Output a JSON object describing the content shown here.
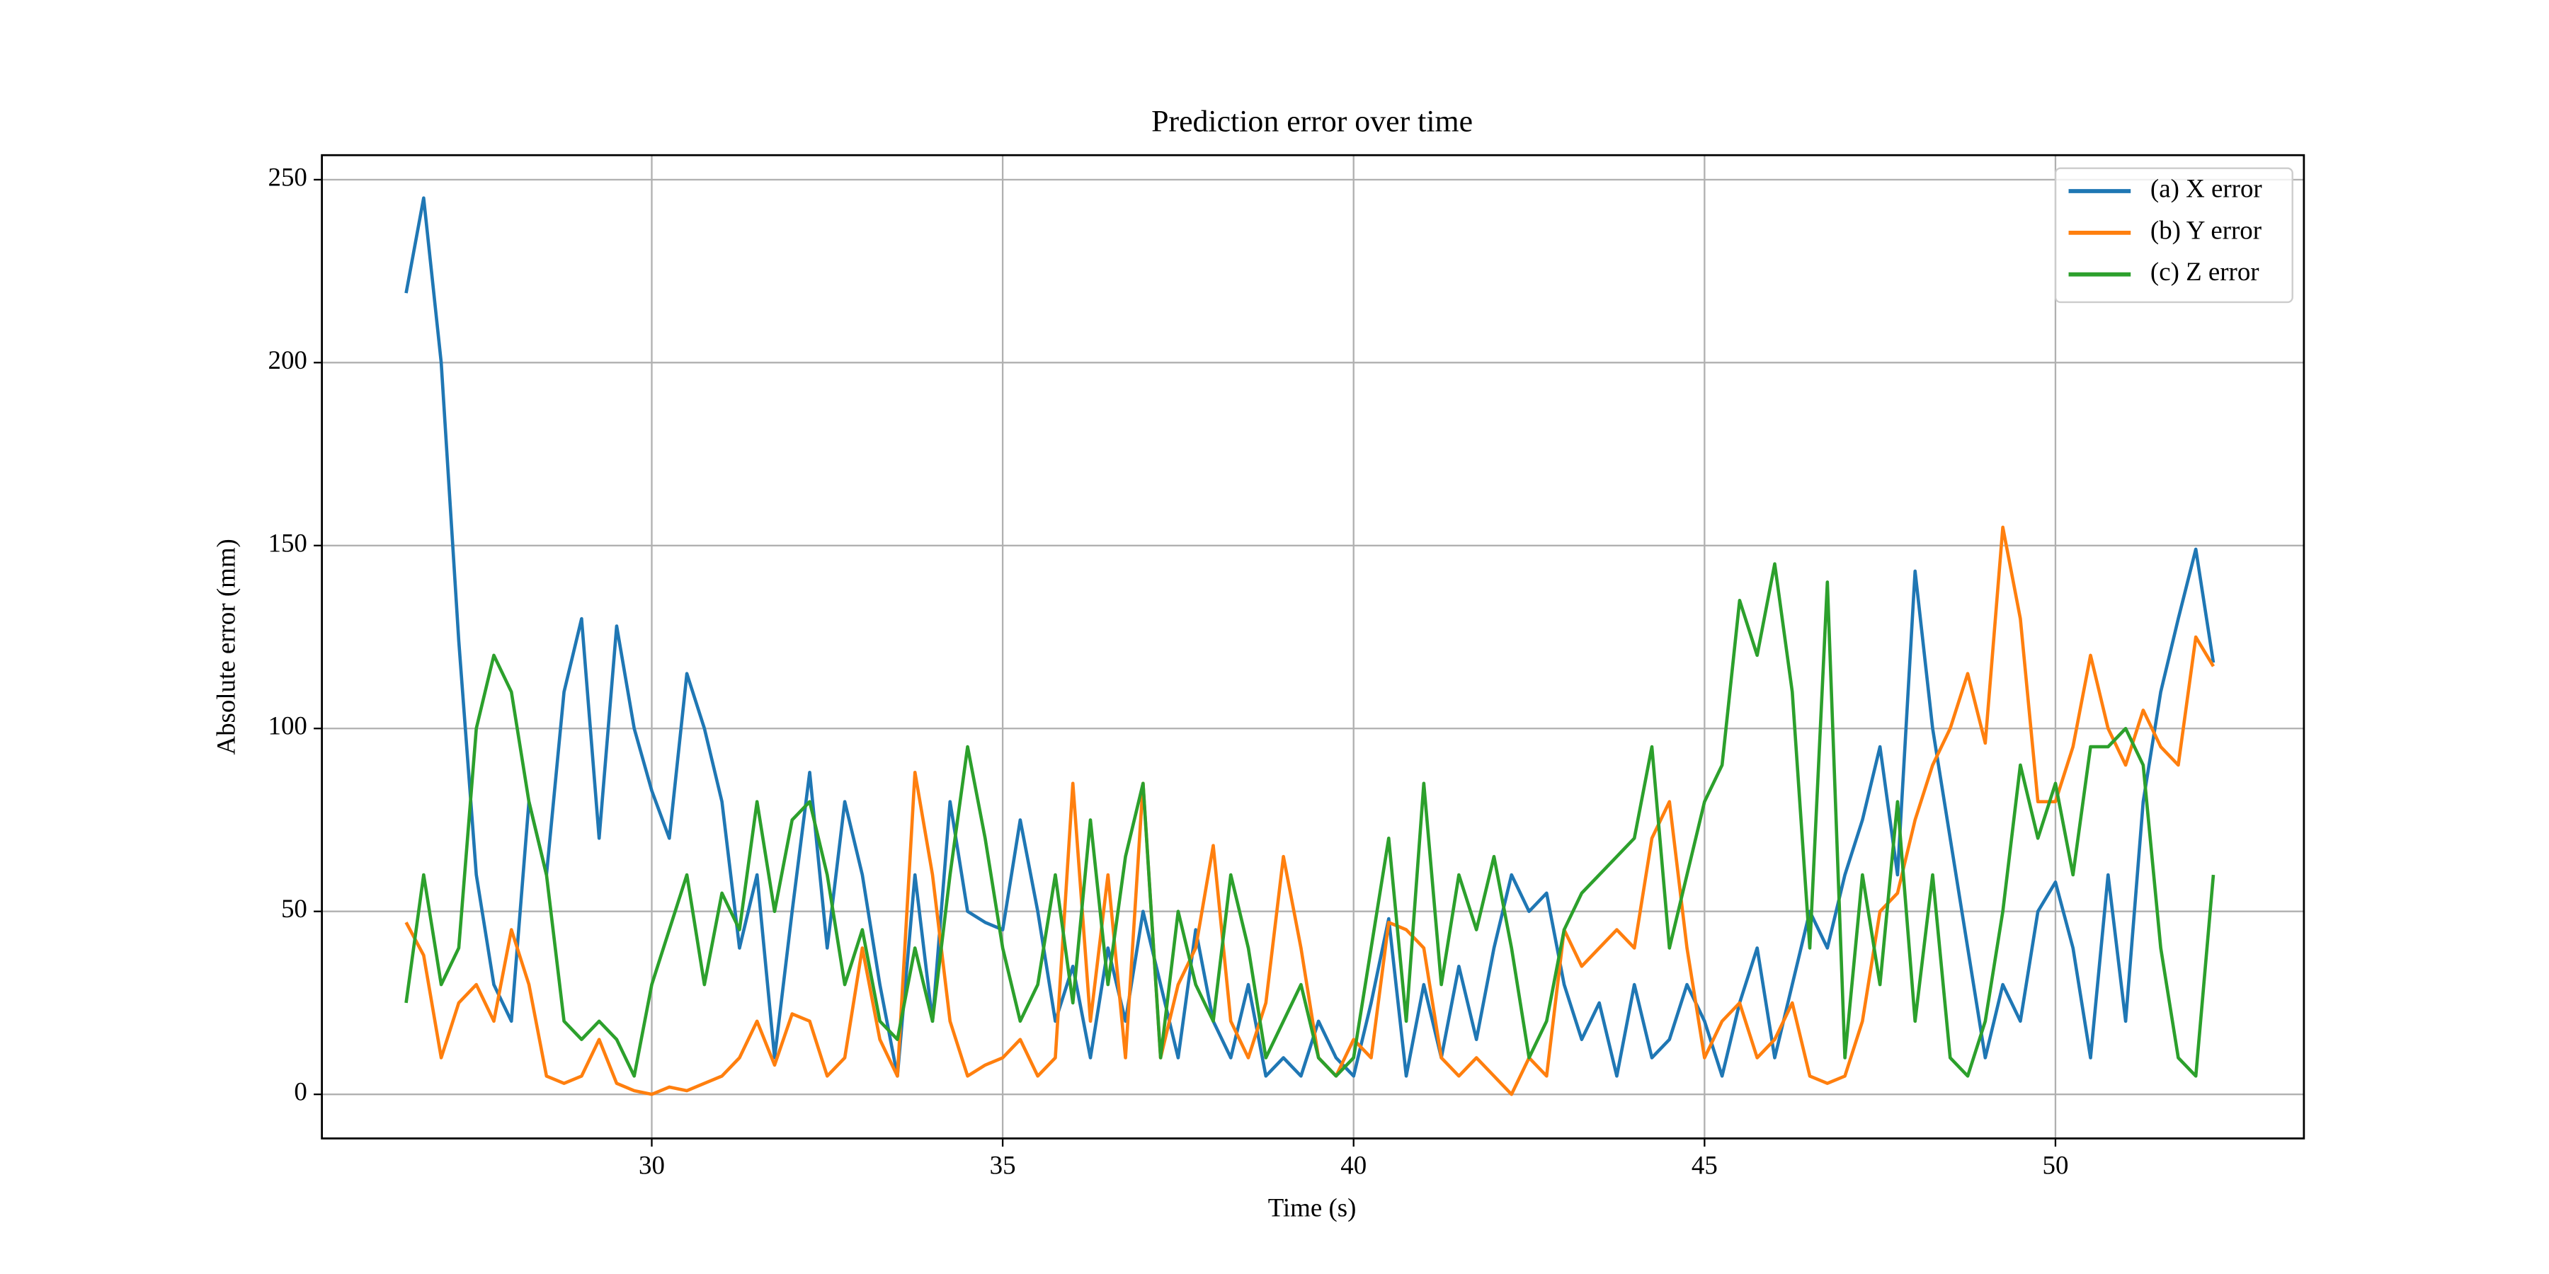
{
  "chart_data": {
    "type": "line",
    "title": "Prediction error over time",
    "xlabel": "Time (s)",
    "ylabel": "Absolute error (mm)",
    "x": [
      26.5,
      26.75,
      27,
      27.25,
      27.5,
      27.75,
      28,
      28.25,
      28.5,
      28.75,
      29,
      29.25,
      29.5,
      29.75,
      30,
      30.25,
      30.5,
      30.75,
      31,
      31.25,
      31.5,
      31.75,
      32,
      32.25,
      32.5,
      32.75,
      33,
      33.25,
      33.5,
      33.75,
      34,
      34.25,
      34.5,
      34.75,
      35,
      35.25,
      35.5,
      35.75,
      36,
      36.25,
      36.5,
      36.75,
      37,
      37.25,
      37.5,
      37.75,
      38,
      38.25,
      38.5,
      38.75,
      39,
      39.25,
      39.5,
      39.75,
      40,
      40.25,
      40.5,
      40.75,
      41,
      41.25,
      41.5,
      41.75,
      42,
      42.25,
      42.5,
      42.75,
      43,
      43.25,
      43.5,
      43.75,
      44,
      44.25,
      44.5,
      44.75,
      45,
      45.25,
      45.5,
      45.75,
      46,
      46.25,
      46.5,
      46.75,
      47,
      47.25,
      47.5,
      47.75,
      48,
      48.25,
      48.5,
      48.75,
      49,
      49.25,
      49.5,
      49.75,
      50,
      50.25,
      50.5,
      50.75,
      51,
      51.25,
      51.5,
      51.75,
      52,
      52.25
    ],
    "series": [
      {
        "name": "(a) X error",
        "color": "#1f77b4",
        "values": [
          219,
          245,
          200,
          124,
          60,
          30,
          20,
          80,
          60,
          110,
          130,
          70,
          128,
          100,
          83,
          70,
          115,
          100,
          80,
          40,
          60,
          10,
          50,
          88,
          40,
          80,
          60,
          30,
          5,
          60,
          20,
          80,
          50,
          47,
          45,
          75,
          50,
          20,
          35,
          10,
          40,
          20,
          50,
          30,
          10,
          45,
          20,
          10,
          30,
          5,
          10,
          5,
          20,
          10,
          5,
          25,
          48,
          5,
          30,
          10,
          35,
          15,
          40,
          60,
          50,
          55,
          30,
          15,
          25,
          5,
          30,
          10,
          15,
          30,
          20,
          5,
          25,
          40,
          10,
          30,
          50,
          40,
          60,
          75,
          95,
          60,
          143,
          100,
          70,
          40,
          10,
          30,
          20,
          50,
          58,
          40,
          10,
          60,
          20,
          80,
          110,
          130,
          149,
          118
        ]
      },
      {
        "name": "(b) Y error",
        "color": "#ff7f0e",
        "values": [
          47,
          38,
          10,
          25,
          30,
          20,
          45,
          30,
          5,
          3,
          5,
          15,
          3,
          1,
          0,
          2,
          1,
          3,
          5,
          10,
          20,
          8,
          22,
          20,
          5,
          10,
          40,
          15,
          5,
          88,
          60,
          20,
          5,
          8,
          10,
          15,
          5,
          10,
          85,
          20,
          60,
          10,
          85,
          10,
          30,
          40,
          68,
          20,
          10,
          25,
          65,
          40,
          10,
          5,
          15,
          10,
          47,
          45,
          40,
          10,
          5,
          10,
          5,
          0,
          10,
          5,
          45,
          35,
          40,
          45,
          40,
          70,
          80,
          40,
          10,
          20,
          25,
          10,
          15,
          25,
          5,
          3,
          5,
          20,
          50,
          55,
          75,
          90,
          100,
          115,
          96,
          155,
          130,
          80,
          80,
          95,
          120,
          100,
          90,
          105,
          95,
          90,
          125,
          117
        ]
      },
      {
        "name": "(c) Z error",
        "color": "#2ca02c",
        "values": [
          25,
          60,
          30,
          40,
          100,
          120,
          110,
          80,
          60,
          20,
          15,
          20,
          15,
          5,
          30,
          45,
          60,
          30,
          55,
          45,
          80,
          50,
          75,
          80,
          60,
          30,
          45,
          20,
          15,
          40,
          20,
          60,
          95,
          70,
          40,
          20,
          30,
          60,
          25,
          75,
          30,
          65,
          85,
          10,
          50,
          30,
          20,
          60,
          40,
          10,
          20,
          30,
          10,
          5,
          10,
          40,
          70,
          20,
          85,
          30,
          60,
          45,
          65,
          40,
          10,
          20,
          45,
          55,
          60,
          65,
          70,
          95,
          40,
          60,
          80,
          90,
          135,
          120,
          145,
          110,
          40,
          140,
          10,
          60,
          30,
          80,
          20,
          60,
          10,
          5,
          20,
          50,
          90,
          70,
          85,
          60,
          95,
          95,
          100,
          90,
          40,
          10,
          5,
          60
        ]
      }
    ],
    "xlim": [
      25.3,
      53.54
    ],
    "ylim": [
      -12.05,
      256.7
    ],
    "xticks": [
      30,
      35,
      40,
      45,
      50
    ],
    "yticks": [
      0,
      50,
      100,
      150,
      200,
      250
    ],
    "grid": true,
    "legend": "upper right"
  }
}
